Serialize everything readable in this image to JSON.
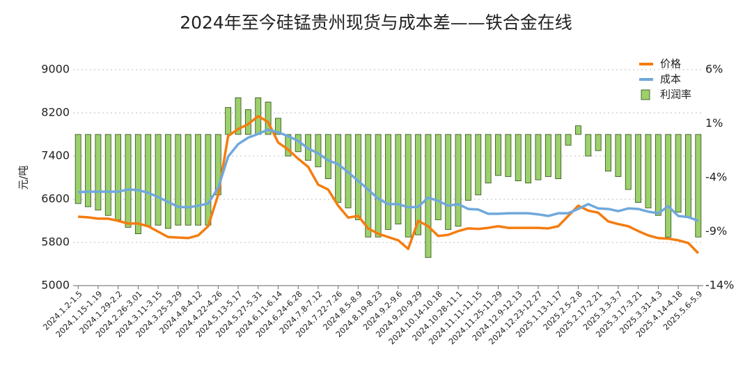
{
  "chart_data": {
    "type": "bar-line",
    "title": "2024年至今硅锰贵州现货与成本差——铁合金在线",
    "y_label": "元/吨",
    "categories": [
      "2024.1.2-1.5",
      null,
      "2024.1.15-1.19",
      null,
      "2024.1.29-2.2",
      null,
      "2024.2.26-3.01",
      null,
      "2024.3.11-3.15",
      null,
      "2024.3.25-3.29",
      null,
      "2024.4.8-4.12",
      null,
      "2024.4.22-4.26",
      null,
      "2024.5.13-5.17",
      null,
      "2024.5.27-5.31",
      null,
      "2024.6.11-6.14",
      null,
      "2024.6.24-6.28",
      null,
      "2024.7.8-7.12",
      null,
      "2024.7.22-7.26",
      null,
      "2024.8.5-8.9",
      null,
      "2024.8.19-8.23",
      null,
      "2024.9.2-9.6",
      null,
      "2024.9.20-9.29",
      null,
      "2024.10.14-10.18",
      null,
      "2024.10.28-11.1",
      null,
      "2024.11.11-11.15",
      null,
      "2024.11.25-11.29",
      null,
      "2024.12.9-12.13",
      null,
      "2024.12.23-12.27",
      null,
      "2025.1.13-1.17",
      null,
      "2025.2.5-2.8",
      null,
      "2025.2.17-2.21",
      null,
      "2025.3.3-3.7",
      null,
      "2025.3.17-3.21",
      null,
      "2025.3.31-4.3",
      null,
      "2025.4.14-4.18",
      null,
      "2025.5.6-5.9"
    ],
    "series": [
      {
        "name": "价格",
        "kind": "line",
        "color": "#f47c0f",
        "values": [
          6277,
          6265,
          6240,
          6240,
          6200,
          6150,
          6150,
          6100,
          6000,
          5900,
          5890,
          5880,
          5930,
          6100,
          6680,
          7770,
          7900,
          7990,
          8140,
          8030,
          7650,
          7520,
          7350,
          7200,
          6870,
          6780,
          6480,
          6260,
          6290,
          6060,
          5960,
          5900,
          5840,
          5680,
          6200,
          6100,
          5920,
          5940,
          6010,
          6060,
          6050,
          6070,
          6100,
          6070,
          6070,
          6070,
          6070,
          6060,
          6100,
          6290,
          6480,
          6390,
          6350,
          6190,
          6140,
          6100,
          6010,
          5930,
          5880,
          5870,
          5840,
          5790,
          5600
        ]
      },
      {
        "name": "成本",
        "kind": "line",
        "color": "#6fa8dc",
        "values": [
          6730,
          6740,
          6740,
          6740,
          6740,
          6780,
          6770,
          6720,
          6640,
          6550,
          6460,
          6450,
          6480,
          6520,
          6810,
          7390,
          7620,
          7740,
          7810,
          7890,
          7840,
          7770,
          7680,
          7540,
          7450,
          7320,
          7250,
          7100,
          6940,
          6780,
          6610,
          6510,
          6510,
          6450,
          6460,
          6630,
          6570,
          6480,
          6510,
          6420,
          6410,
          6330,
          6330,
          6340,
          6340,
          6340,
          6320,
          6290,
          6340,
          6340,
          6420,
          6510,
          6430,
          6420,
          6380,
          6430,
          6420,
          6370,
          6340,
          6470,
          6290,
          6270,
          6200
        ]
      },
      {
        "name": "利润率",
        "kind": "bar",
        "axis": "y2",
        "color": "#9bd06b",
        "values": [
          -6.4,
          -6.7,
          -7.0,
          -7.5,
          -7.9,
          -8.6,
          -9.2,
          -8.5,
          -8.4,
          -8.7,
          -8.4,
          -8.4,
          -8.4,
          -8.4,
          -5.6,
          2.5,
          3.4,
          2.3,
          3.4,
          3.0,
          1.5,
          -2.0,
          -1.6,
          -2.4,
          -3.0,
          -4.1,
          -6.3,
          -6.8,
          -7.9,
          -9.5,
          -9.5,
          -8.8,
          -8.3,
          -9.5,
          -9.3,
          -11.4,
          -7.9,
          -8.8,
          -8.5,
          -6.1,
          -5.6,
          -4.5,
          -3.8,
          -3.9,
          -4.3,
          -4.5,
          -4.2,
          -3.9,
          -4.1,
          -1.0,
          0.8,
          -2.0,
          -1.5,
          -3.4,
          -3.9,
          -5.1,
          -6.3,
          -6.8,
          -7.5,
          -9.5,
          -7.2,
          -7.7,
          -9.5
        ]
      }
    ],
    "ylim": [
      5000,
      9000
    ],
    "yticks": [
      5000,
      5800,
      6600,
      7400,
      8200,
      9000
    ],
    "y2lim": [
      -14,
      6
    ],
    "y2ticks": [
      {
        "value": -14,
        "label": "-14%"
      },
      {
        "value": -9,
        "label": "-9%"
      },
      {
        "value": -4,
        "label": "-4%"
      },
      {
        "value": 1,
        "label": "1%"
      },
      {
        "value": 6,
        "label": "6%"
      }
    ],
    "grid": true,
    "legend": "top-right"
  }
}
